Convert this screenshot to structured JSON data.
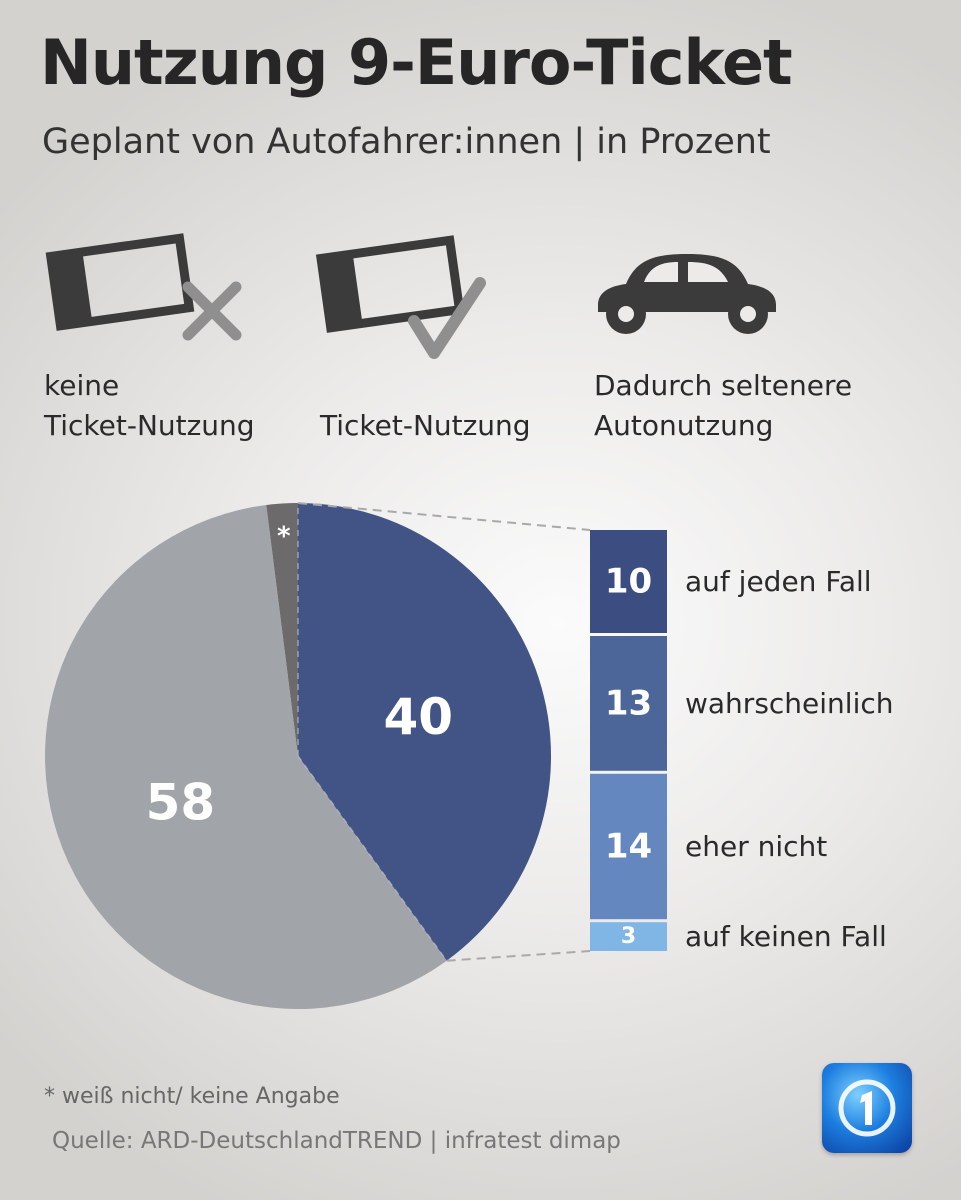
{
  "header": {
    "title": "Nutzung 9-Euro-Ticket",
    "subtitle": "Geplant von Autofahrer:innen | in Prozent"
  },
  "legend": [
    {
      "icon": "ticket-cross-icon",
      "label": "keine\nTicket-Nutzung"
    },
    {
      "icon": "ticket-check-icon",
      "label": "Ticket-Nutzung"
    },
    {
      "icon": "car-icon",
      "label": "Dadurch seltenere\nAutonutzung"
    }
  ],
  "chart_data": [
    {
      "type": "pie",
      "slices": [
        {
          "label": "Ticket-Nutzung",
          "value": 40,
          "display": "40",
          "color": "#425486"
        },
        {
          "label": "keine Ticket-Nutzung",
          "value": 58,
          "display": "58",
          "color": "#a1a4a8"
        },
        {
          "label": "weiß nicht/ keine Angabe",
          "value": 2,
          "display": "*",
          "color": "#6c6a6b"
        }
      ]
    },
    {
      "type": "bar",
      "orientation": "stacked-vertical",
      "categories": [
        "auf jeden Fall",
        "wahrscheinlich",
        "eher nicht",
        "auf keinen Fall"
      ],
      "values": [
        10,
        13,
        14,
        3
      ],
      "colors": [
        "#3c4d81",
        "#4c6699",
        "#6587c0",
        "#7fb6e6"
      ]
    }
  ],
  "footer": {
    "footnote": "* weiß nicht/ keine Angabe",
    "source": "Quelle: ARD-DeutschlandTREND | infratest dimap"
  },
  "colors": {
    "icon_dark": "#3b3b3b",
    "icon_grey": "#8f8f8f",
    "connector": "#a9a9a9",
    "value_text": "#ffffff"
  }
}
